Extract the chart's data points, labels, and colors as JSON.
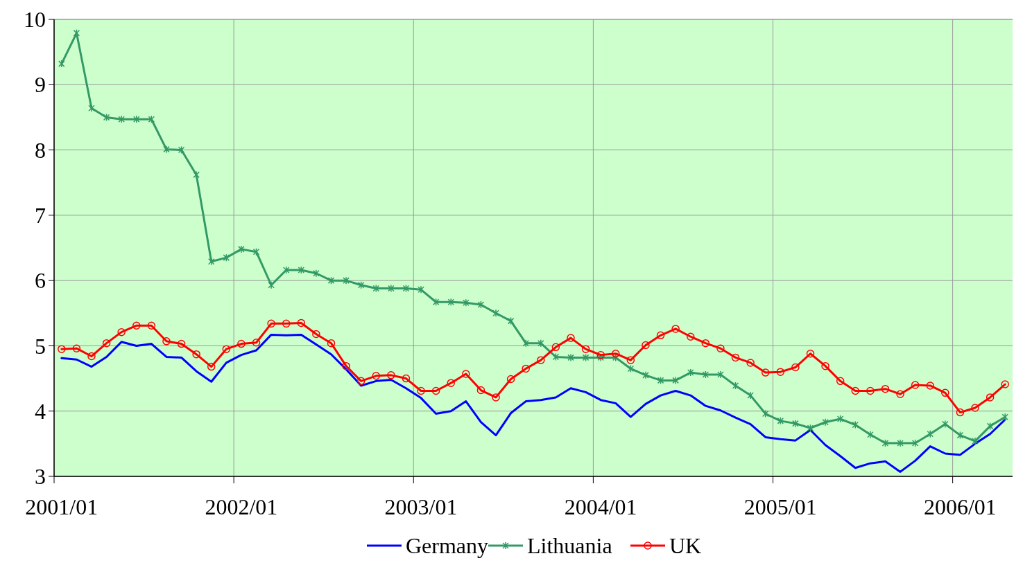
{
  "chart_data": {
    "type": "line",
    "categories": [
      "2001/01",
      null,
      null,
      null,
      null,
      null,
      null,
      null,
      null,
      null,
      null,
      null,
      "2002/01",
      null,
      null,
      null,
      null,
      null,
      null,
      null,
      null,
      null,
      null,
      null,
      "2003/01",
      null,
      null,
      null,
      null,
      null,
      null,
      null,
      null,
      null,
      null,
      null,
      "2004/01",
      null,
      null,
      null,
      null,
      null,
      null,
      null,
      null,
      null,
      null,
      null,
      "2005/01",
      null,
      null,
      null,
      null,
      null,
      null,
      null,
      null,
      null,
      null,
      null,
      "2006/01",
      null,
      null,
      null
    ],
    "series": [
      {
        "name": "Germany",
        "color": "#0000ff",
        "marker": "none",
        "values": [
          4.81,
          4.79,
          4.68,
          4.83,
          5.06,
          5.0,
          5.03,
          4.83,
          4.82,
          4.61,
          4.45,
          4.74,
          4.86,
          4.93,
          5.17,
          5.16,
          5.17,
          5.02,
          4.87,
          4.64,
          4.39,
          4.46,
          4.48,
          4.35,
          4.2,
          3.96,
          4.0,
          4.15,
          3.83,
          3.63,
          3.97,
          4.15,
          4.17,
          4.21,
          4.35,
          4.29,
          4.17,
          4.12,
          3.91,
          4.11,
          4.24,
          4.31,
          4.24,
          4.08,
          4.01,
          3.9,
          3.8,
          3.6,
          3.57,
          3.55,
          3.71,
          3.48,
          3.31,
          3.13,
          3.2,
          3.23,
          3.07,
          3.24,
          3.46,
          3.35,
          3.33,
          3.5,
          3.65,
          3.87
        ]
      },
      {
        "name": "Lithuania",
        "color": "#339966",
        "marker": "cross",
        "values": [
          9.32,
          9.79,
          8.64,
          8.5,
          8.47,
          8.47,
          8.47,
          8.01,
          8.0,
          7.62,
          6.29,
          6.35,
          6.48,
          6.44,
          5.93,
          6.16,
          6.16,
          6.11,
          6.0,
          6.0,
          5.93,
          5.88,
          5.88,
          5.88,
          5.86,
          5.67,
          5.67,
          5.66,
          5.63,
          5.5,
          5.38,
          5.04,
          5.04,
          4.83,
          4.82,
          4.82,
          4.82,
          4.82,
          4.65,
          4.55,
          4.47,
          4.47,
          4.59,
          4.56,
          4.56,
          4.39,
          4.24,
          3.96,
          3.85,
          3.81,
          3.74,
          3.83,
          3.88,
          3.79,
          3.64,
          3.51,
          3.51,
          3.51,
          3.65,
          3.8,
          3.63,
          3.54,
          3.77,
          3.91
        ]
      },
      {
        "name": "UK",
        "color": "#ff0000",
        "marker": "circle",
        "values": [
          4.95,
          4.96,
          4.84,
          5.04,
          5.21,
          5.31,
          5.31,
          5.07,
          5.03,
          4.87,
          4.68,
          4.95,
          5.03,
          5.05,
          5.34,
          5.34,
          5.35,
          5.18,
          5.04,
          4.69,
          4.46,
          4.54,
          4.55,
          4.5,
          4.31,
          4.31,
          4.43,
          4.57,
          4.32,
          4.21,
          4.49,
          4.65,
          4.78,
          4.98,
          5.12,
          4.95,
          4.86,
          4.88,
          4.78,
          5.01,
          5.16,
          5.26,
          5.14,
          5.04,
          4.96,
          4.82,
          4.74,
          4.59,
          4.6,
          4.67,
          4.88,
          4.69,
          4.46,
          4.31,
          4.31,
          4.34,
          4.26,
          4.4,
          4.39,
          4.28,
          3.98,
          4.05,
          4.21,
          4.41
        ]
      }
    ],
    "ylim": [
      3,
      10
    ],
    "yticks": [
      3,
      4,
      5,
      6,
      7,
      8,
      9,
      10
    ],
    "grid": true,
    "legend": "bottom",
    "line_style": "solid"
  }
}
